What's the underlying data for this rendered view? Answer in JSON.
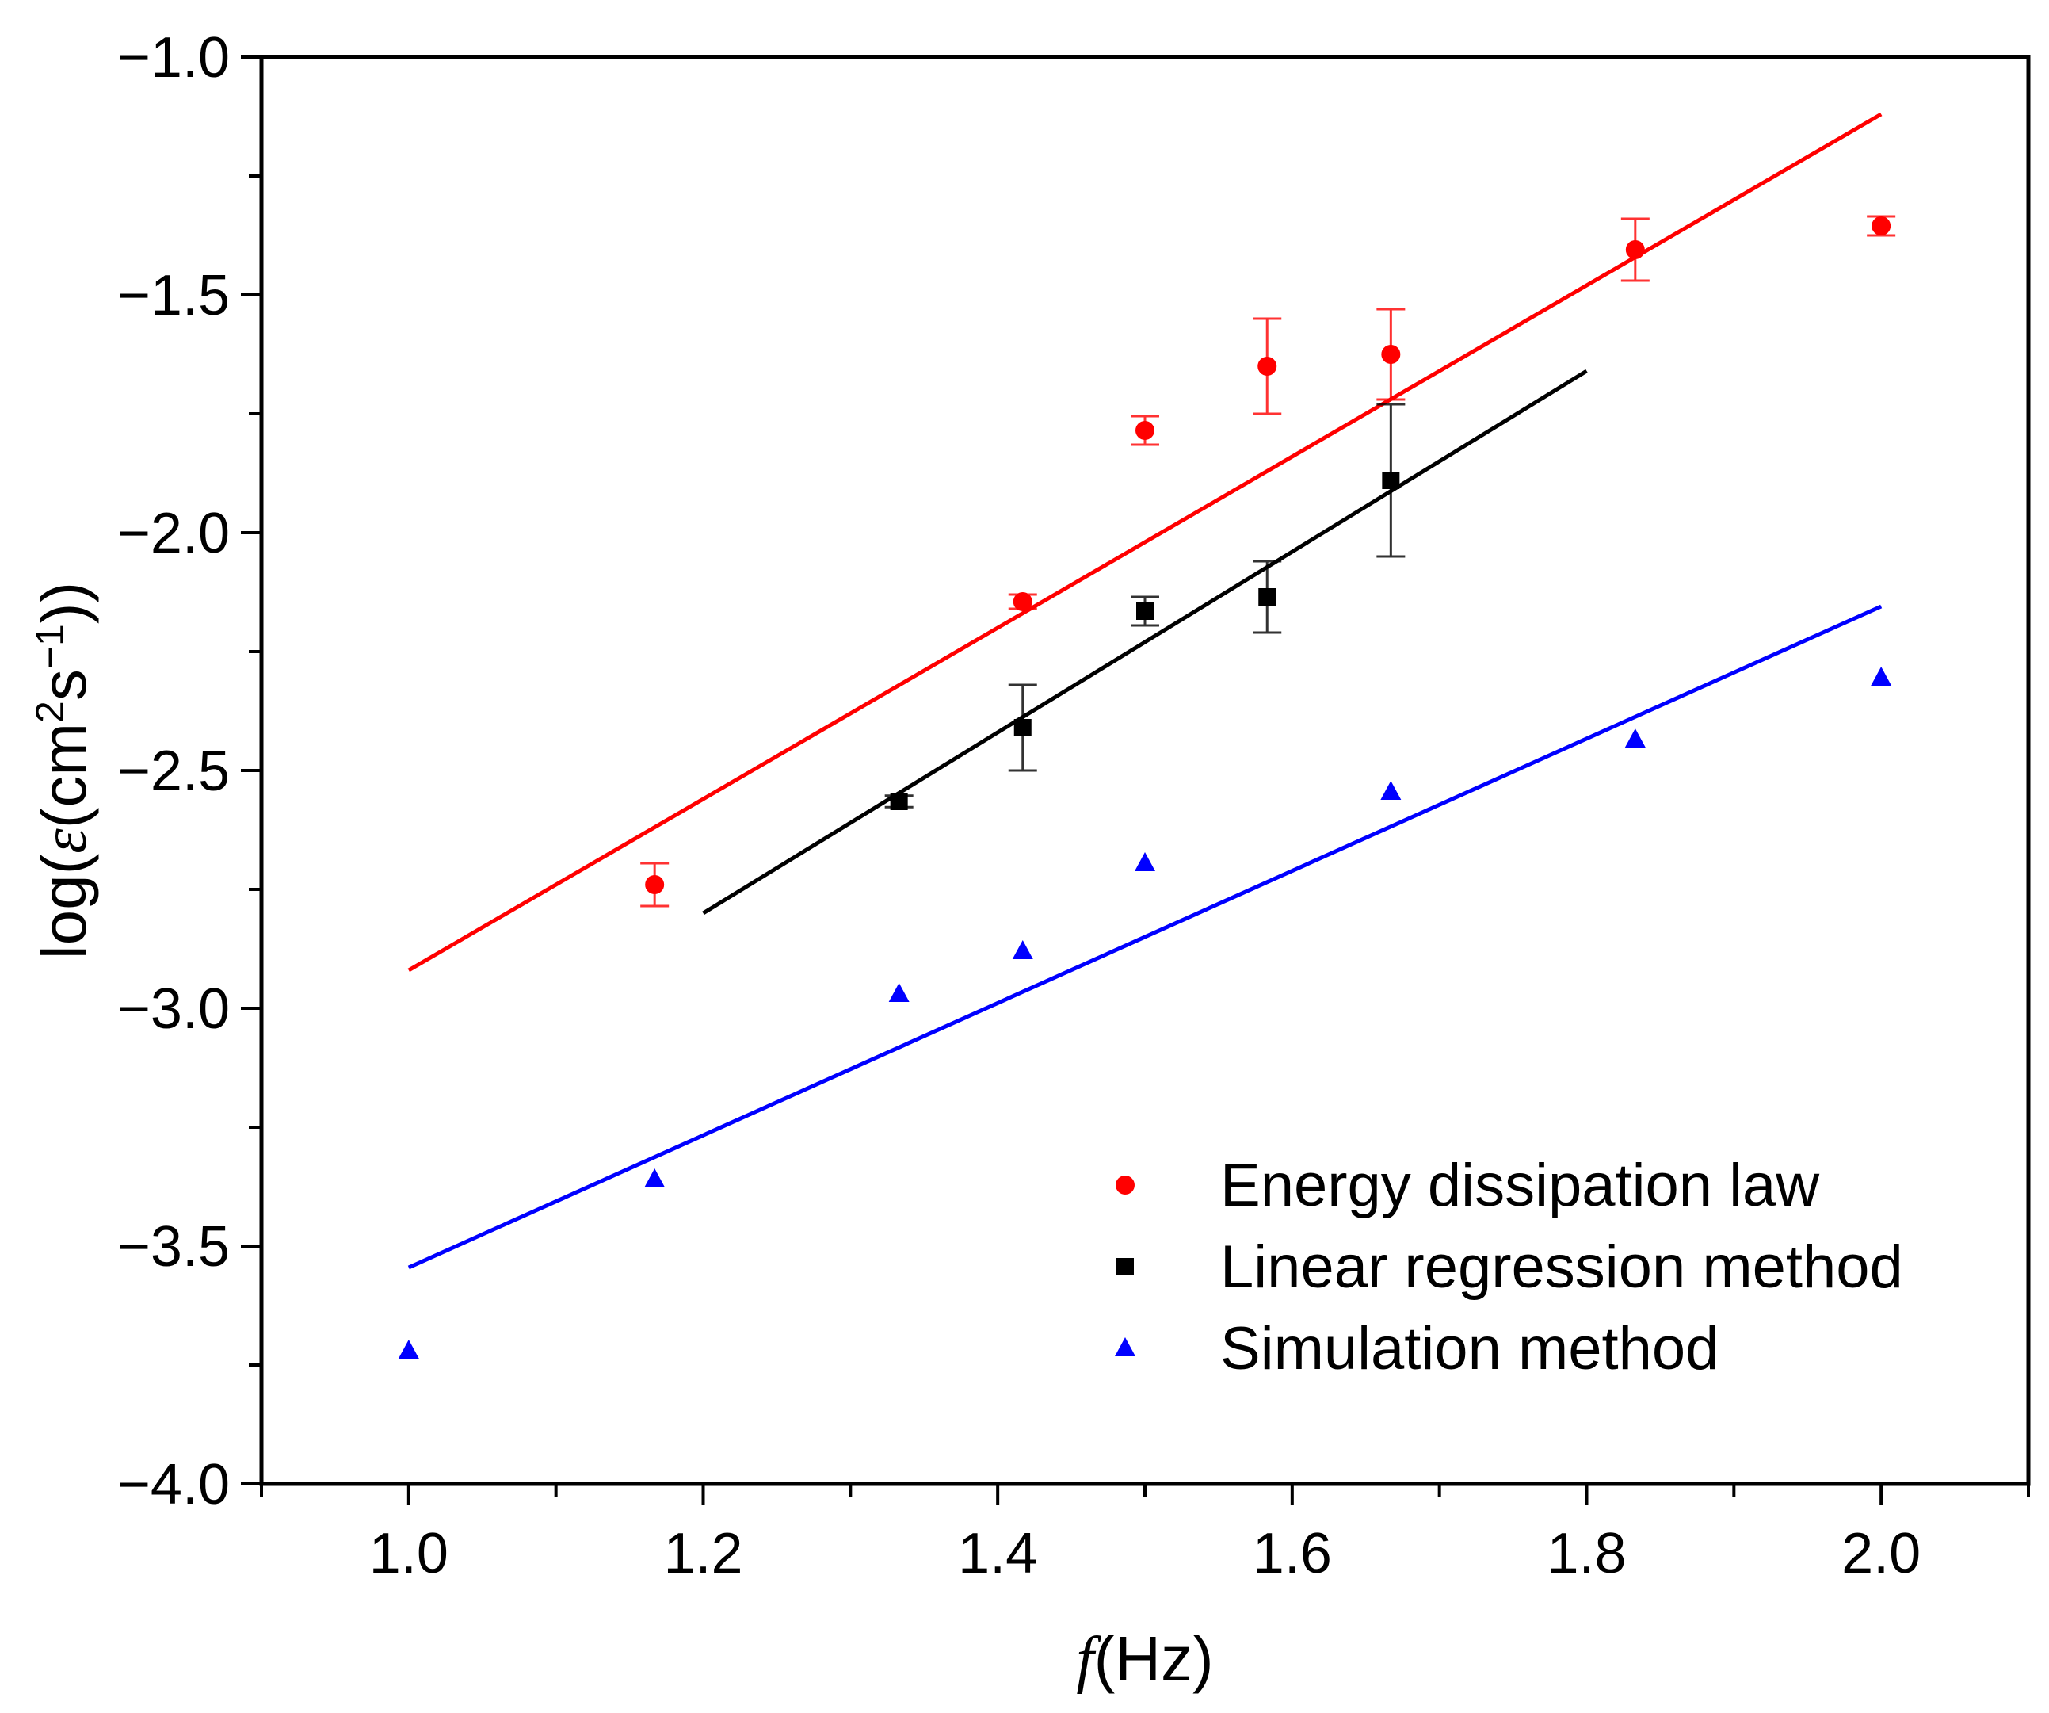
{
  "chart_data": {
    "type": "scatter",
    "title": "",
    "xlabel_var": "f",
    "xlabel_unit": "(Hz)",
    "ylabel_prefix": "log(",
    "ylabel_var": "ε",
    "ylabel_unit_open": "(cm",
    "ylabel_exp1": "2",
    "ylabel_unit_mid": "s",
    "ylabel_exp2": "−1",
    "ylabel_close": "))",
    "xlim": [
      0.9,
      2.1
    ],
    "ylim": [
      -4.0,
      -1.0
    ],
    "x_ticks": [
      1.0,
      1.2,
      1.4,
      1.6,
      1.8,
      2.0
    ],
    "x_tick_labels": [
      "1.0",
      "1.2",
      "1.4",
      "1.6",
      "1.8",
      "2.0"
    ],
    "y_ticks": [
      -1.0,
      -1.5,
      -2.0,
      -2.5,
      -3.0,
      -3.5,
      -4.0
    ],
    "y_tick_labels": [
      "−1.0",
      "−1.5",
      "−2.0",
      "−2.5",
      "−3.0",
      "−3.5",
      "−4.0"
    ],
    "grid": false,
    "legend_position": "bottom-right",
    "series": [
      {
        "name": "Energy dissipation law",
        "marker": "circle",
        "color": "#ff0000",
        "points": [
          {
            "x": 1.167,
            "y": -2.74,
            "err": 0.045
          },
          {
            "x": 1.417,
            "y": -2.145,
            "err": 0.015
          },
          {
            "x": 1.5,
            "y": -1.785,
            "err": 0.03
          },
          {
            "x": 1.583,
            "y": -1.65,
            "err": 0.1
          },
          {
            "x": 1.667,
            "y": -1.625,
            "err": 0.095
          },
          {
            "x": 1.833,
            "y": -1.405,
            "err": 0.065
          },
          {
            "x": 2.0,
            "y": -1.355,
            "err": 0.02
          }
        ],
        "fit": {
          "x": [
            1.0,
            2.0
          ],
          "y": [
            -2.92,
            -1.12
          ]
        }
      },
      {
        "name": "Linear regression method",
        "marker": "square",
        "color": "#000000",
        "points": [
          {
            "x": 1.333,
            "y": -2.565,
            "err": 0.012
          },
          {
            "x": 1.417,
            "y": -2.41,
            "err": 0.09
          },
          {
            "x": 1.5,
            "y": -2.165,
            "err": 0.03
          },
          {
            "x": 1.583,
            "y": -2.135,
            "err": 0.075
          },
          {
            "x": 1.667,
            "y": -1.89,
            "err": 0.16
          }
        ],
        "fit": {
          "x": [
            1.2,
            1.8
          ],
          "y": [
            -2.8,
            -1.66
          ]
        }
      },
      {
        "name": "Simulation method",
        "marker": "triangle",
        "color": "#0000ff",
        "points": [
          {
            "x": 1.0,
            "y": -3.72
          },
          {
            "x": 1.167,
            "y": -3.36
          },
          {
            "x": 1.333,
            "y": -2.97
          },
          {
            "x": 1.417,
            "y": -2.88
          },
          {
            "x": 1.5,
            "y": -2.695
          },
          {
            "x": 1.667,
            "y": -2.545
          },
          {
            "x": 1.833,
            "y": -2.435
          },
          {
            "x": 2.0,
            "y": -2.305
          }
        ],
        "fit": {
          "x": [
            1.0,
            2.0
          ],
          "y": [
            -3.545,
            -2.155
          ]
        }
      }
    ]
  }
}
